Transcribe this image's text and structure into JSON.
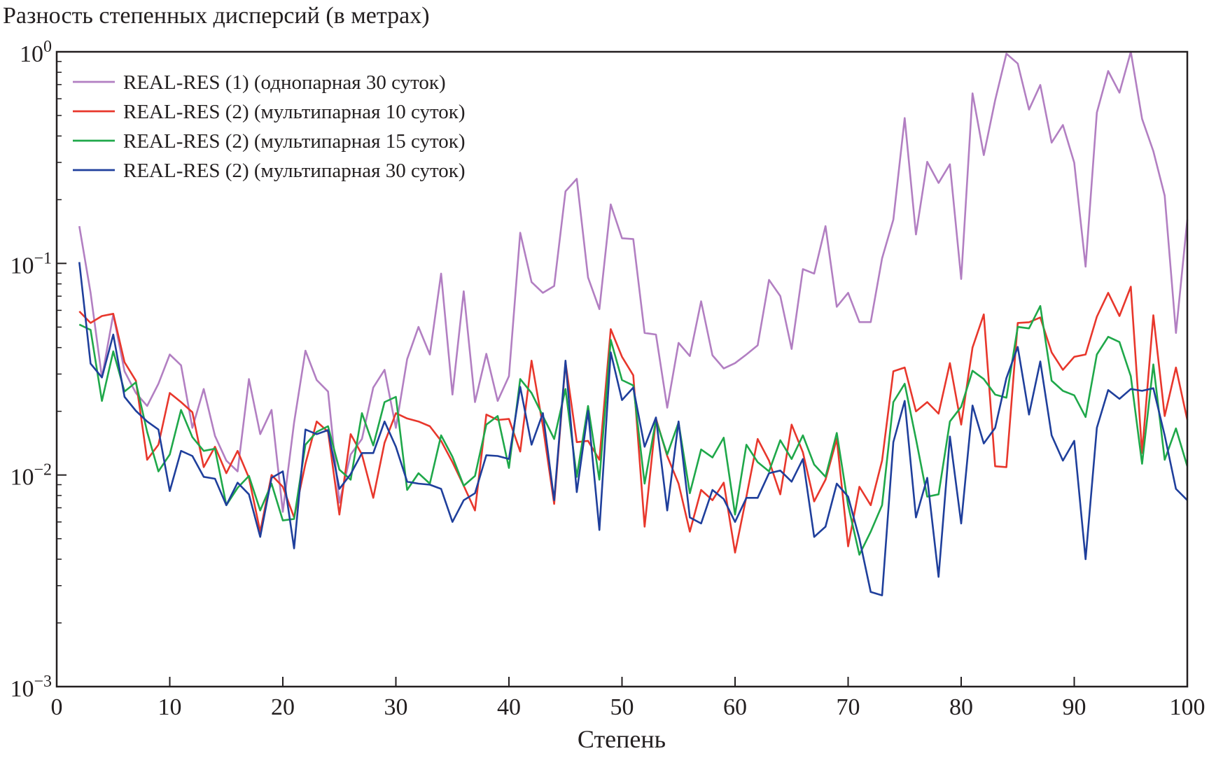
{
  "chart_data": {
    "type": "line",
    "title": "Разность степенных дисперсий (в метрах)",
    "xlabel": "Степень",
    "ylabel": "Разность степенных дисперсий (в метрах)",
    "xlim": [
      0,
      100
    ],
    "ylim": [
      0.001,
      1
    ],
    "yscale": "log",
    "grid": false,
    "legend_position": "top-left",
    "x_ticks": [
      "0",
      "10",
      "20",
      "30",
      "40",
      "50",
      "60",
      "70",
      "80",
      "90",
      "100"
    ],
    "y_ticks": [
      {
        "base": "10",
        "exp": "0",
        "value": 1
      },
      {
        "base": "10",
        "exp": "−1",
        "value": 0.1
      },
      {
        "base": "10",
        "exp": "−2",
        "value": 0.01
      },
      {
        "base": "10",
        "exp": "−3",
        "value": 0.001
      }
    ],
    "x_start": 2,
    "series": [
      {
        "name": "REAL-RES (1) (однопарная 30 суток)",
        "color": "#b27fc2",
        "values": [
          0.15,
          0.0726,
          0.0289,
          0.0574,
          0.0309,
          0.0244,
          0.0212,
          0.027,
          0.0371,
          0.033,
          0.0167,
          0.0255,
          0.0153,
          0.0117,
          0.0104,
          0.0284,
          0.0156,
          0.0203,
          0.0067,
          0.0177,
          0.0387,
          0.0281,
          0.0248,
          0.0074,
          0.0125,
          0.0148,
          0.0259,
          0.0314,
          0.0167,
          0.0353,
          0.0501,
          0.0371,
          0.0895,
          0.024,
          0.0738,
          0.0221,
          0.0374,
          0.0224,
          0.0293,
          0.1395,
          0.0816,
          0.0726,
          0.0782,
          0.219,
          0.251,
          0.0858,
          0.0608,
          0.19,
          0.1315,
          0.1303,
          0.0469,
          0.0461,
          0.0208,
          0.0421,
          0.0365,
          0.0662,
          0.0368,
          0.0319,
          0.0338,
          0.0371,
          0.041,
          0.0836,
          0.0701,
          0.0394,
          0.094,
          0.0895,
          0.15,
          0.0624,
          0.0726,
          0.0528,
          0.0528,
          0.1057,
          0.161,
          0.486,
          0.137,
          0.302,
          0.24,
          0.294,
          0.0844,
          0.636,
          0.325,
          0.59,
          0.98,
          0.88,
          0.533,
          0.697,
          0.372,
          0.451,
          0.299,
          0.0965,
          0.516,
          0.811,
          0.641,
          1.0,
          0.482,
          0.339,
          0.209,
          0.0469,
          0.161
        ]
      },
      {
        "name": "REAL-RES (2) (мультипарная 10 суток)",
        "color": "#e8372c",
        "values": [
          0.0593,
          0.0523,
          0.0564,
          0.0578,
          0.0341,
          0.0279,
          0.0118,
          0.0139,
          0.0244,
          0.0221,
          0.0198,
          0.0109,
          0.0136,
          0.0102,
          0.013,
          0.0097,
          0.0054,
          0.01,
          0.0088,
          0.0063,
          0.0113,
          0.0179,
          0.016,
          0.0065,
          0.0156,
          0.0125,
          0.0078,
          0.0142,
          0.0196,
          0.0185,
          0.0179,
          0.017,
          0.0145,
          0.0115,
          0.0089,
          0.0068,
          0.0193,
          0.0182,
          0.0184,
          0.0129,
          0.0347,
          0.017,
          0.0073,
          0.0341,
          0.0143,
          0.0145,
          0.0118,
          0.0489,
          0.0362,
          0.0296,
          0.0057,
          0.0185,
          0.0123,
          0.0091,
          0.0054,
          0.0085,
          0.0076,
          0.0092,
          0.0043,
          0.0079,
          0.0148,
          0.0117,
          0.0081,
          0.0173,
          0.0128,
          0.0075,
          0.0095,
          0.0148,
          0.0046,
          0.0088,
          0.0072,
          0.0117,
          0.0309,
          0.0322,
          0.02,
          0.0221,
          0.0195,
          0.0338,
          0.0173,
          0.04,
          0.0574,
          0.011,
          0.0109,
          0.0523,
          0.0527,
          0.0555,
          0.038,
          0.0314,
          0.0362,
          0.0371,
          0.056,
          0.0726,
          0.0564,
          0.0776,
          0.0127,
          0.0569,
          0.019,
          0.0322,
          0.0182
        ]
      },
      {
        "name": "REAL-RES (2) (мультипарная 15 суток)",
        "color": "#1fa84a",
        "values": [
          0.0514,
          0.0485,
          0.0224,
          0.0384,
          0.0248,
          0.0274,
          0.016,
          0.0104,
          0.0125,
          0.0203,
          0.0151,
          0.013,
          0.0133,
          0.0072,
          0.0087,
          0.0099,
          0.0068,
          0.0091,
          0.0061,
          0.0062,
          0.0139,
          0.016,
          0.017,
          0.0106,
          0.0095,
          0.0196,
          0.0138,
          0.0221,
          0.0234,
          0.0085,
          0.0102,
          0.0091,
          0.0154,
          0.0122,
          0.0089,
          0.0099,
          0.0173,
          0.019,
          0.0108,
          0.0284,
          0.0244,
          0.019,
          0.0148,
          0.0255,
          0.0098,
          0.0212,
          0.0095,
          0.0435,
          0.0281,
          0.0265,
          0.0091,
          0.0182,
          0.0125,
          0.0177,
          0.0082,
          0.0132,
          0.0121,
          0.015,
          0.0065,
          0.0139,
          0.0115,
          0.0104,
          0.0146,
          0.0119,
          0.0154,
          0.0112,
          0.0098,
          0.0158,
          0.0072,
          0.0042,
          0.0054,
          0.0072,
          0.0221,
          0.027,
          0.0148,
          0.0079,
          0.0081,
          0.0179,
          0.021,
          0.0311,
          0.0284,
          0.024,
          0.0232,
          0.0501,
          0.0493,
          0.0629,
          0.0279,
          0.025,
          0.0238,
          0.0188,
          0.0371,
          0.045,
          0.0425,
          0.0293,
          0.0113,
          0.0333,
          0.0118,
          0.0166,
          0.011
        ]
      },
      {
        "name": "REAL-RES (2) (мультипарная 30 суток)",
        "color": "#1f3f9c",
        "values": [
          0.1014,
          0.0336,
          0.0289,
          0.0461,
          0.0234,
          0.0201,
          0.0179,
          0.0164,
          0.0084,
          0.013,
          0.0123,
          0.0098,
          0.0096,
          0.0072,
          0.0092,
          0.0081,
          0.0051,
          0.0097,
          0.0104,
          0.0045,
          0.0164,
          0.0156,
          0.0163,
          0.0086,
          0.0101,
          0.0127,
          0.0127,
          0.0179,
          0.0136,
          0.0093,
          0.0091,
          0.009,
          0.0086,
          0.006,
          0.0076,
          0.0082,
          0.0124,
          0.0123,
          0.0119,
          0.0261,
          0.0139,
          0.0196,
          0.0076,
          0.0347,
          0.0083,
          0.0201,
          0.0055,
          0.038,
          0.0226,
          0.0259,
          0.0136,
          0.0187,
          0.0068,
          0.0179,
          0.0063,
          0.0059,
          0.0085,
          0.0077,
          0.006,
          0.0078,
          0.0078,
          0.0102,
          0.0105,
          0.0093,
          0.0119,
          0.0051,
          0.0057,
          0.0091,
          0.0079,
          0.005,
          0.0028,
          0.0027,
          0.0143,
          0.0224,
          0.0063,
          0.0097,
          0.0033,
          0.0152,
          0.0059,
          0.0213,
          0.0141,
          0.0167,
          0.0287,
          0.0403,
          0.0193,
          0.0344,
          0.0154,
          0.0117,
          0.0145,
          0.004,
          0.0167,
          0.0252,
          0.0229,
          0.0255,
          0.025,
          0.0257,
          0.0154,
          0.0086,
          0.0076
        ]
      }
    ]
  }
}
